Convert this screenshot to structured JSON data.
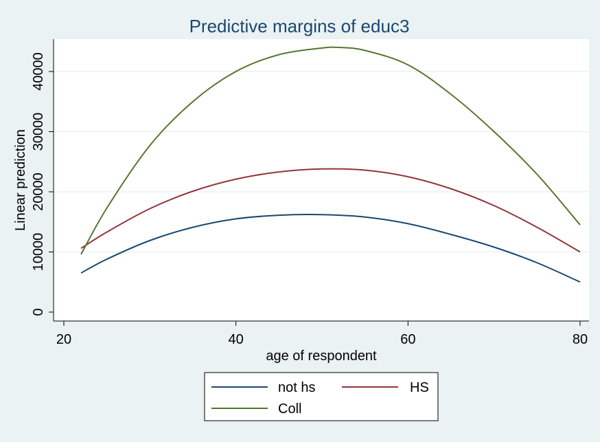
{
  "chart_data": {
    "type": "line",
    "title": "Predictive margins of educ3",
    "xlabel": "age of respondent",
    "ylabel": "Linear prediction",
    "xlim": [
      20,
      80
    ],
    "ylim": [
      0,
      45000
    ],
    "xticks": [
      20,
      40,
      60,
      80
    ],
    "yticks": [
      0,
      10000,
      20000,
      30000,
      40000
    ],
    "grid": "horizontal",
    "legend_position": "bottom",
    "series": [
      {
        "name": "not hs",
        "color": "#1a476f",
        "x": [
          22,
          25,
          30,
          35,
          40,
          45,
          50,
          55,
          60,
          65,
          70,
          75,
          80
        ],
        "y": [
          6500,
          8800,
          11900,
          14100,
          15500,
          16100,
          16200,
          15800,
          14700,
          12900,
          10800,
          8200,
          5000
        ]
      },
      {
        "name": "HS",
        "color": "#90353b",
        "x": [
          22,
          25,
          30,
          35,
          40,
          45,
          50,
          55,
          60,
          65,
          70,
          75,
          80
        ],
        "y": [
          10600,
          13300,
          17200,
          20100,
          22100,
          23300,
          23800,
          23600,
          22500,
          20500,
          17700,
          14100,
          10000
        ]
      },
      {
        "name": "Coll",
        "color": "#55752f",
        "x": [
          22,
          25,
          30,
          35,
          40,
          45,
          50,
          52,
          55,
          60,
          65,
          70,
          75,
          80
        ],
        "y": [
          9600,
          17300,
          27700,
          35000,
          40000,
          42800,
          43900,
          44000,
          43500,
          41100,
          36200,
          30000,
          22900,
          14500
        ]
      }
    ]
  }
}
